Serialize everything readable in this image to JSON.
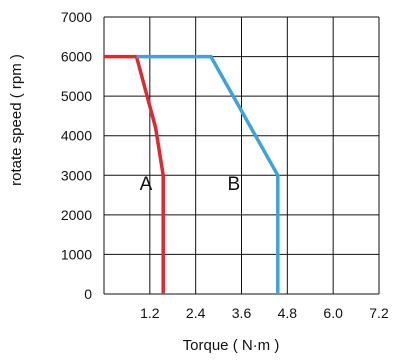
{
  "chart_data": {
    "type": "line",
    "xlabel": "Torque ( N·m )",
    "ylabel": "rotate speed ( rpm )",
    "xlim": [
      0,
      7.2
    ],
    "ylim": [
      0,
      7000
    ],
    "x_ticks": [
      1.2,
      2.4,
      3.6,
      4.8,
      6.0,
      7.2
    ],
    "x_tick_labels": [
      "1.2",
      "2.4",
      "3.6",
      "4.8",
      "6.0",
      "7.2"
    ],
    "y_ticks": [
      0,
      1000,
      2000,
      3000,
      4000,
      5000,
      6000,
      7000
    ],
    "y_tick_labels": [
      "0",
      "1000",
      "2000",
      "3000",
      "4000",
      "5000",
      "6000",
      "7000"
    ],
    "grid": true,
    "legend": "none",
    "series": [
      {
        "name": "A",
        "color": "#e0282f",
        "points": [
          [
            0,
            6000
          ],
          [
            0.85,
            6000
          ],
          [
            1.35,
            4200
          ],
          [
            1.55,
            3000
          ],
          [
            1.55,
            0
          ]
        ]
      },
      {
        "name": "B",
        "color": "#3ea3d8",
        "points": [
          [
            0.85,
            6000
          ],
          [
            2.8,
            6000
          ],
          [
            4.55,
            3000
          ],
          [
            4.55,
            0
          ]
        ]
      }
    ],
    "annotations": [
      {
        "text": "A",
        "x": 1.1,
        "y": 2500
      },
      {
        "text": "B",
        "x": 3.4,
        "y": 2500
      }
    ]
  }
}
